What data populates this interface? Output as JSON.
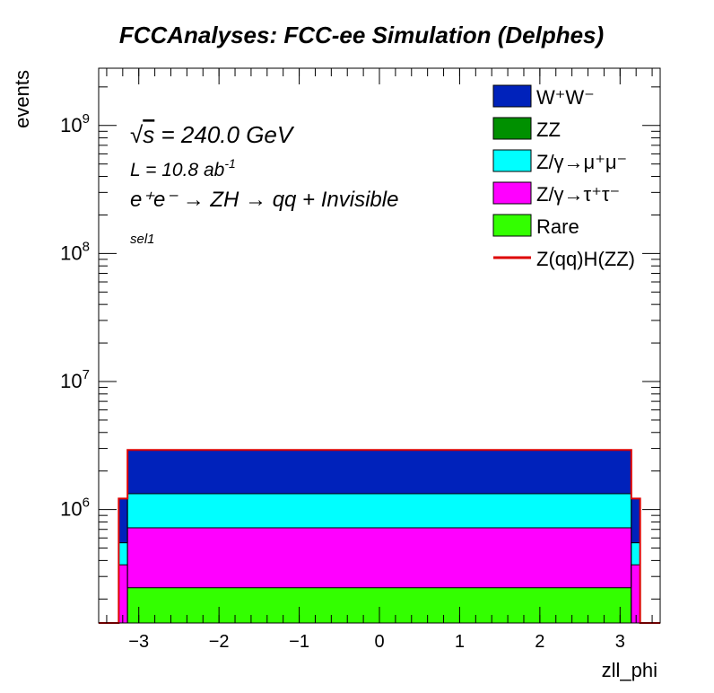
{
  "chart_data": {
    "type": "histogram-stacked",
    "title": "FCCAnalyses: FCC-ee Simulation (Delphes)",
    "xlabel": "zll_phi",
    "ylabel": "events",
    "xlim": [
      -3.5,
      3.5
    ],
    "ylim": [
      130000,
      2800000000
    ],
    "yscale": "log",
    "grid": false,
    "legend_position": "top-right",
    "x_ticks": [
      -3,
      -2,
      -1,
      0,
      1,
      2,
      3
    ],
    "x_tick_labels": [
      "−3",
      "−2",
      "−1",
      "0",
      "1",
      "2",
      "3"
    ],
    "y_ticks": [
      {
        "base": "10",
        "exp": "6",
        "value": 1000000
      },
      {
        "base": "10",
        "exp": "7",
        "value": 10000000
      },
      {
        "base": "10",
        "exp": "8",
        "value": 100000000
      },
      {
        "base": "10",
        "exp": "9",
        "value": 1000000000
      }
    ],
    "annotations": {
      "sqrt_s_prefix": "√",
      "sqrt_s_var": "s",
      "sqrt_s_rest": " = 240.0 GeV",
      "lumi_prefix": "L = 10.8 ab",
      "lumi_sup": "-1",
      "process": "e⁺e⁻ → ZH → qq + Invisible",
      "selection": "sel1"
    },
    "bins": [
      {
        "x0": -3.5,
        "x1": -3.25,
        "wjets_top": 130000,
        "w": 130000,
        "zmu": 130000,
        "ztau": 130000,
        "rare": 130000,
        "signal": 130000
      },
      {
        "x0": -3.25,
        "x1": -3.14,
        "w": 1220000,
        "zmu": 550000,
        "ztau": 370000,
        "rare": 130000,
        "signal": 1220000
      },
      {
        "x0": -3.14,
        "x1": 3.14,
        "w": 2920000,
        "zmu": 1330000,
        "ztau": 720000,
        "rare": 245000,
        "signal": 2920000
      },
      {
        "x0": 3.14,
        "x1": 3.25,
        "w": 1220000,
        "zmu": 550000,
        "ztau": 370000,
        "rare": 130000,
        "signal": 1220000
      },
      {
        "x0": 3.25,
        "x1": 3.5,
        "w": 130000,
        "zmu": 130000,
        "ztau": 130000,
        "rare": 130000,
        "signal": 130000
      }
    ],
    "series": [
      {
        "name": "W⁺W⁻",
        "key": "w",
        "color": "#0022bb"
      },
      {
        "name": "ZZ",
        "key": "zz",
        "color": "#009000"
      },
      {
        "name": "Z/γ→μ⁺μ⁻",
        "key": "zmu",
        "color": "#00ffff"
      },
      {
        "name": "Z/γ→τ⁺τ⁻",
        "key": "ztau",
        "color": "#ff00ff"
      },
      {
        "name": "Rare",
        "key": "rare",
        "color": "#33ff00"
      },
      {
        "name": "Z(qq)H(ZZ)",
        "key": "signal",
        "color": "#dd0000",
        "style": "line"
      }
    ]
  }
}
